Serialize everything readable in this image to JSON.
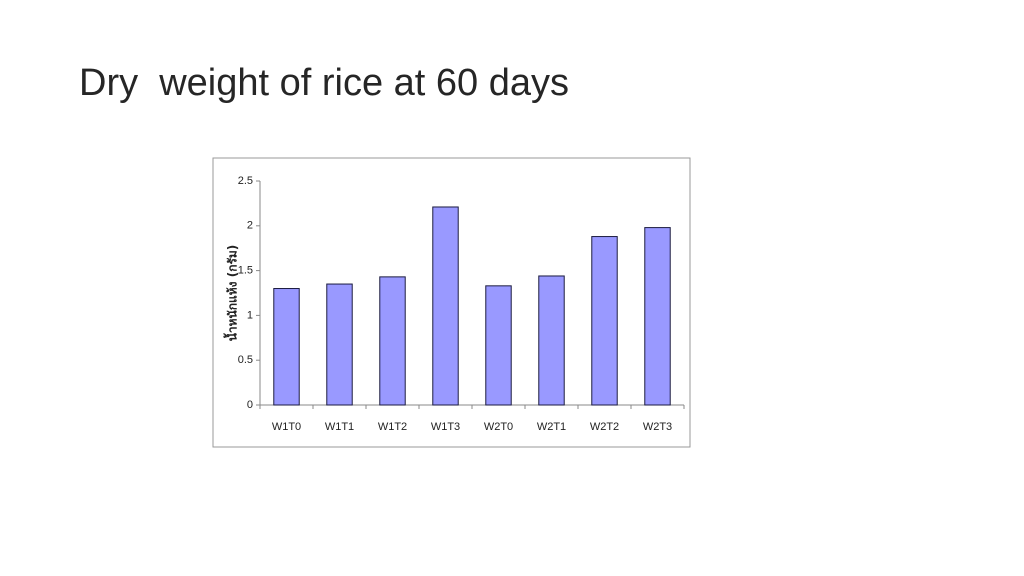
{
  "chart_data": {
    "type": "bar",
    "title": "Dry  weight of rice at 60 days",
    "y_label": "น้ำหนักแห้ง (กรัม)",
    "categories": [
      "W1T0",
      "W1T1",
      "W1T2",
      "W1T3",
      "W2T0",
      "W2T1",
      "W2T2",
      "W2T3"
    ],
    "values": [
      1.3,
      1.35,
      1.43,
      2.21,
      1.33,
      1.44,
      1.88,
      1.98
    ],
    "color": "#9999ff",
    "ylim": [
      0,
      2.5
    ],
    "yticks": [
      0,
      0.5,
      1,
      1.5,
      2,
      2.5
    ],
    "grid": false
  }
}
